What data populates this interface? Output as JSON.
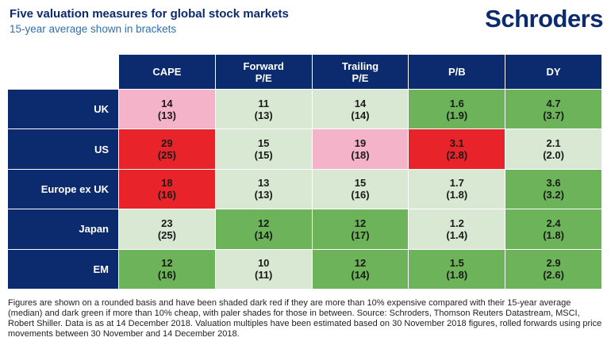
{
  "header": {
    "title": "Five valuation measures for global stock markets",
    "subtitle": "15-year average shown in brackets",
    "logo_text": "Schroders"
  },
  "colors": {
    "brand_navy": "#0c2a6e",
    "dark_red": "#e8232a",
    "pale_red": "#f4b3c8",
    "dark_green": "#6cb35a",
    "pale_green": "#d8e8d2"
  },
  "chart_data": {
    "type": "table",
    "columns": [
      "CAPE",
      "Forward\nP/E",
      "Trailing\nP/E",
      "P/B",
      "DY"
    ],
    "rows": [
      {
        "label": "UK",
        "cells": [
          {
            "value": "14",
            "avg": "(13)",
            "shade": "pale_red"
          },
          {
            "value": "11",
            "avg": "(13)",
            "shade": "pale_green"
          },
          {
            "value": "14",
            "avg": "(14)",
            "shade": "pale_green"
          },
          {
            "value": "1.6",
            "avg": "(1.9)",
            "shade": "dark_green"
          },
          {
            "value": "4.7",
            "avg": "(3.7)",
            "shade": "dark_green"
          }
        ]
      },
      {
        "label": "US",
        "cells": [
          {
            "value": "29",
            "avg": "(25)",
            "shade": "dark_red"
          },
          {
            "value": "15",
            "avg": "(15)",
            "shade": "pale_green"
          },
          {
            "value": "19",
            "avg": "(18)",
            "shade": "pale_red"
          },
          {
            "value": "3.1",
            "avg": "(2.8)",
            "shade": "dark_red"
          },
          {
            "value": "2.1",
            "avg": "(2.0)",
            "shade": "pale_green"
          }
        ]
      },
      {
        "label": "Europe ex UK",
        "cells": [
          {
            "value": "18",
            "avg": "(16)",
            "shade": "dark_red"
          },
          {
            "value": "13",
            "avg": "(13)",
            "shade": "pale_green"
          },
          {
            "value": "15",
            "avg": "(16)",
            "shade": "pale_green"
          },
          {
            "value": "1.7",
            "avg": "(1.8)",
            "shade": "pale_green"
          },
          {
            "value": "3.6",
            "avg": "(3.2)",
            "shade": "dark_green"
          }
        ]
      },
      {
        "label": "Japan",
        "cells": [
          {
            "value": "23",
            "avg": "(25)",
            "shade": "pale_green"
          },
          {
            "value": "12",
            "avg": "(14)",
            "shade": "dark_green"
          },
          {
            "value": "12",
            "avg": "(17)",
            "shade": "dark_green"
          },
          {
            "value": "1.2",
            "avg": "(1.4)",
            "shade": "pale_green"
          },
          {
            "value": "2.4",
            "avg": "(1.8)",
            "shade": "dark_green"
          }
        ]
      },
      {
        "label": "EM",
        "cells": [
          {
            "value": "12",
            "avg": "(16)",
            "shade": "dark_green"
          },
          {
            "value": "10",
            "avg": "(11)",
            "shade": "pale_green"
          },
          {
            "value": "12",
            "avg": "(14)",
            "shade": "dark_green"
          },
          {
            "value": "1.5",
            "avg": "(1.8)",
            "shade": "dark_green"
          },
          {
            "value": "2.9",
            "avg": "(2.6)",
            "shade": "dark_green"
          }
        ]
      }
    ]
  },
  "footnote": "Figures are shown on a rounded basis and have been shaded dark red if they are more than 10% expensive compared with their 15-year average (median) and dark green if more than 10% cheap, with paler shades for those in between. Source: Schroders, Thomson Reuters Datastream, MSCI, Robert Shiller. Data is as at 14 December 2018. Valuation multiples have been estimated based on 30 November 2018 figures, rolled forwards using price movements between 30 November and 14 December 2018."
}
